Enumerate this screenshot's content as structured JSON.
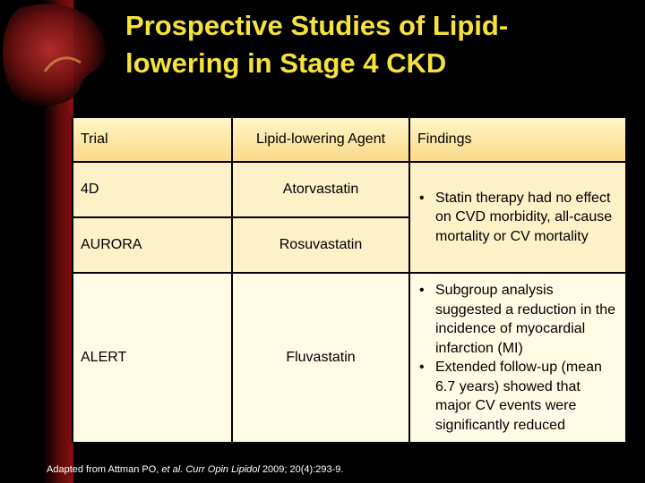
{
  "header": {
    "title": "Prospective Studies of Lipid-lowering in Stage 4 CKD"
  },
  "table": {
    "headers": [
      "Trial",
      "Lipid-lowering Agent",
      "Findings"
    ],
    "rows": [
      {
        "trial": "4D",
        "agent": "Atorvastatin"
      },
      {
        "trial": "AURORA",
        "agent": "Rosuvastatin"
      },
      {
        "trial": "ALERT",
        "agent": "Fluvastatin"
      }
    ],
    "findings": [
      [
        "Statin therapy had no effect on CVD morbidity, all-cause mortality or CV mortality"
      ],
      [
        "Subgroup analysis suggested a reduction in the incidence of myocardial infarction (MI)",
        "Extended follow-up (mean 6.7 years) showed that major CV events were significantly reduced"
      ]
    ]
  },
  "footer": {
    "source": "Adapted from Attman PO,",
    "authors": "et al.",
    "journal": "Curr Opin Lipidol",
    "citation": "2009; 20(4):293-9."
  }
}
